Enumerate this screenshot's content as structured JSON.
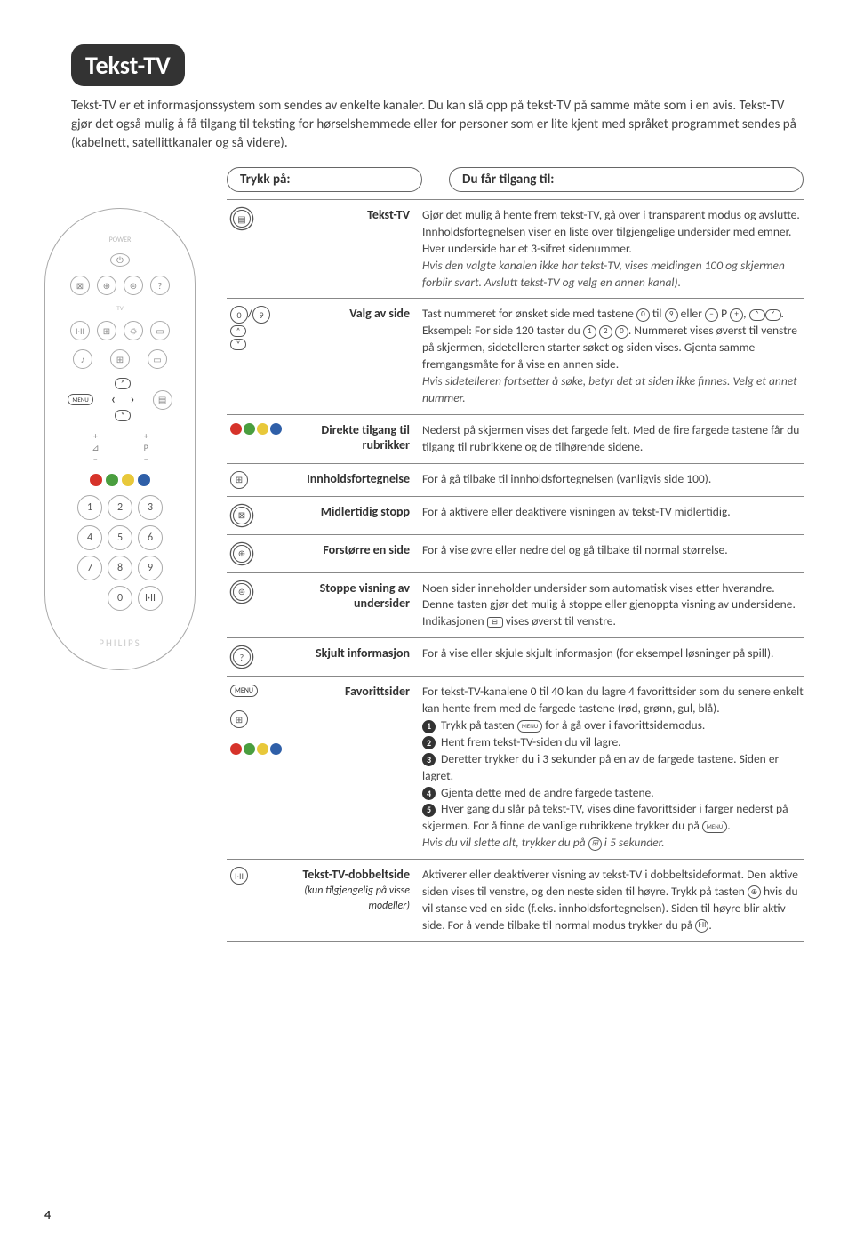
{
  "page_number": "4",
  "title": "Tekst-TV",
  "intro": "Tekst-TV er et informasjonssystem som sendes av enkelte kanaler. Du kan slå opp på tekst-TV på samme måte som i en avis. Tekst-TV gjør det også mulig å få tilgang til teksting for hørselshemmede eller for personer som er lite kjent med språket programmet sendes på (kabelnett, satellittkanaler og så videre).",
  "col1_header": "Trykk på:",
  "col2_header": "Du får tilgang til:",
  "colors": {
    "red": "#d6332a",
    "green": "#4a9e3f",
    "yellow": "#e8c83a",
    "blue": "#2f5fa8",
    "gray": "#888888"
  },
  "rows": [
    {
      "icon_html": "<span class=\"circ-icon dbl\" data-name=\"teletext-icon\" data-interactable=\"false\">▤</span>",
      "label": "Tekst-TV",
      "desc": "Gjør det mulig å hente frem tekst-TV, gå over i transparent modus og avslutte. Innholdsfortegnelsen viser en liste over tilgjengelige undersider med emner. Hver underside har et 3-sifret sidenummer.<br><span class=\"it\">Hvis den valgte kanalen ikke har tekst-TV, vises meldingen 100 og skjermen forblir svart. Avslutt tekst-TV og velg en annen kanal).</span>"
    },
    {
      "icon_html": "<span class=\"circ-icon\" data-name=\"digit-0-icon\" data-interactable=\"false\">0</span>/<span class=\"circ-icon\" data-name=\"digit-9-icon\" data-interactable=\"false\">9</span><br><span class=\"arrow-oval\" data-name=\"up-icon\" data-interactable=\"false\">˄</span><br><span class=\"arrow-oval\" data-name=\"down-icon\" data-interactable=\"false\">˅</span>",
      "label": "Valg av side",
      "desc": "Tast nummeret for ønsket side med tastene <span class=\"circ-small\">0</span> til <span class=\"circ-small\">9</span> eller <span class=\"circ-small\">−</span> P <span class=\"circ-small\">+</span>, <span class=\"arrow-oval\">˄</span><span class=\"arrow-oval\">˅</span>. Eksempel: For side 120 taster du <span class=\"circ-small\">1</span> <span class=\"circ-small\">2</span> <span class=\"circ-small\">0</span>. Nummeret vises øverst til venstre på skjermen, sidetelleren starter søket og siden vises. Gjenta samme fremgangsmåte for å vise en annen side.<br><span class=\"it\">Hvis sidetelleren fortsetter å søke, betyr det at siden ikke finnes. Velg et annet nummer.</span>"
    },
    {
      "icon_html": "<span class=\"colordots-inline\" data-name=\"color-dots-icon\" data-interactable=\"false\"><span class=\"dot\" style=\"background:#d6332a\"></span><span class=\"dot\" style=\"background:#4a9e3f\"></span><span class=\"dot\" style=\"background:#e8c83a\"></span><span class=\"dot\" style=\"background:#2f5fa8\"></span></span>",
      "label": "Direkte tilgang til rubrikker",
      "desc": "Nederst på skjermen vises det fargede felt. Med de fire fargede tastene får du tilgang til rubrikkene og de tilhørende sidene."
    },
    {
      "icon_html": "<span class=\"circ-icon\" data-name=\"index-icon\" data-interactable=\"false\">⊞</span>",
      "label": "Innholdsfortegnelse",
      "desc": "For å gå tilbake til innholdsfortegnelsen (vanligvis side 100)."
    },
    {
      "icon_html": "<span class=\"circ-icon dbl\" data-name=\"hold-icon\" data-interactable=\"false\">⊠</span>",
      "label": "Midlertidig stopp",
      "desc": "For å aktivere eller deaktivere visningen av tekst-TV midlertidig."
    },
    {
      "icon_html": "<span class=\"circ-icon dbl\" data-name=\"zoom-icon\" data-interactable=\"false\">⊕</span>",
      "label": "Forstørre en side",
      "desc": "For å vise øvre eller nedre del og gå tilbake til normal størrelse."
    },
    {
      "icon_html": "<span class=\"circ-icon dbl\" data-name=\"subpage-stop-icon\" data-interactable=\"false\">⊜</span>",
      "label": "Stoppe visning av undersider",
      "desc": "Noen sider inneholder undersider som automatisk vises etter hverandre. Denne tasten gjør det mulig å stoppe eller gjenoppta visning av undersidene. Indikasjonen <span class=\"sq-icon\">⊟</span> vises øverst til venstre."
    },
    {
      "icon_html": "<span class=\"circ-icon dbl\" data-name=\"reveal-icon\" data-interactable=\"false\">?</span>",
      "label": "Skjult informasjon",
      "desc": "For å vise eller skjule skjult informasjon (for eksempel løsninger på spill)."
    },
    {
      "icon_html": "<span class=\"menu-pill\" data-name=\"menu-icon\" data-interactable=\"false\">MENU</span><br><br><span class=\"circ-icon\" data-name=\"index-icon-2\" data-interactable=\"false\">⊞</span><br><br><span class=\"colordots-inline\" data-name=\"color-dots-icon-2\" data-interactable=\"false\"><span class=\"dot\" style=\"background:#d6332a\"></span><span class=\"dot\" style=\"background:#4a9e3f\"></span><span class=\"dot\" style=\"background:#e8c83a\"></span><span class=\"dot\" style=\"background:#2f5fa8\"></span></span>",
      "label": "Favorittsider",
      "desc": "For tekst-TV-kanalene 0 til 40 kan du lagre 4 favorittsider som du senere enkelt kan hente frem med de fargede tastene (rød, grønn, gul, blå).<br><span class=\"step-circ\">1</span> Trykk på tasten <span class=\"menu-pill\" style=\"font-size:7px\">MENU</span> for å gå over i favorittsidemodus.<br><span class=\"step-circ\">2</span> Hent frem tekst-TV-siden du vil lagre.<br><span class=\"step-circ\">3</span> Deretter trykker du i 3 sekunder på en av de fargede tastene. Siden er lagret.<br><span class=\"step-circ\">4</span> Gjenta dette med de andre fargede tastene.<br><span class=\"step-circ\">5</span> Hver gang du slår på tekst-TV, vises dine favorittsider i farger nederst på skjermen. For å finne de vanlige rubrikkene trykker du på <span class=\"menu-pill\" style=\"font-size:7px\">MENU</span>.<br><span class=\"it\">Hvis du vil slette alt, trykker du på <span class=\"circ-small\">⊞</span> i 5 sekunder.</span>"
    },
    {
      "icon_html": "<span class=\"circ-icon\" data-name=\"dual-screen-icon\" data-interactable=\"false\">I·II</span>",
      "label": "Tekst-TV-dobbeltside",
      "label_sub": "(kun tilgjengelig på visse modeller)",
      "desc": "Aktiverer eller deaktiverer visning av tekst-TV i dobbeltsideformat. Den aktive siden vises til venstre, og den neste siden til høyre. Trykk på tasten <span class=\"circ-small\">⊕</span> hvis du vil stanse ved en side (f.eks. innholdsfortegnelsen). Siden til høyre blir aktiv side. For å vende tilbake til normal modus trykker du på <span class=\"circ-small\">I·II</span>."
    }
  ],
  "remote": {
    "numpad": [
      "1",
      "2",
      "3",
      "4",
      "5",
      "6",
      "7",
      "8",
      "9",
      " ",
      "0",
      "I·II"
    ],
    "brand": "PHILIPS"
  }
}
